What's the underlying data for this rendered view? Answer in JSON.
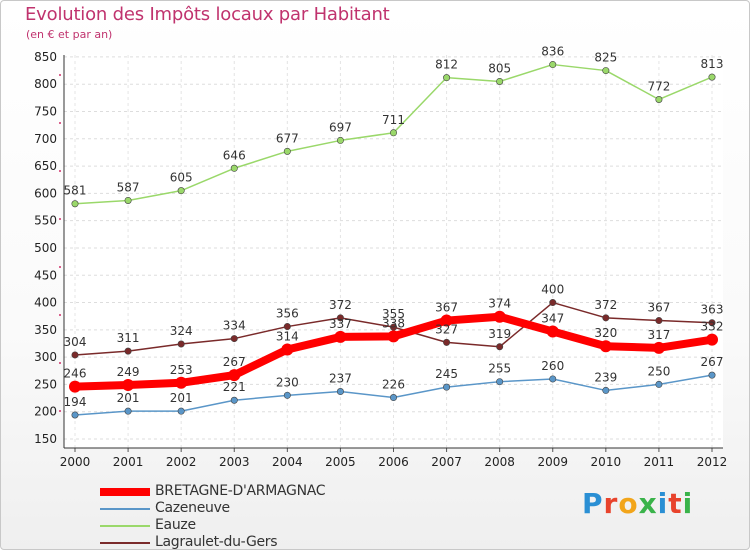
{
  "title": "Evolution des Impôts locaux par Habitant",
  "subtitle": "(en € et par an)",
  "logo": {
    "text": "Proxiti",
    "colors": [
      "#2a8fd4",
      "#e8432c",
      "#f2a51a",
      "#3ab34a",
      "#2a8fd4",
      "#e8432c",
      "#3ab34a"
    ]
  },
  "chart_data": {
    "type": "line",
    "x": [
      2000,
      2001,
      2002,
      2003,
      2004,
      2005,
      2006,
      2007,
      2008,
      2009,
      2010,
      2011,
      2012
    ],
    "y_ticks": [
      150,
      200,
      250,
      300,
      350,
      400,
      450,
      500,
      550,
      600,
      650,
      700,
      750,
      800,
      850
    ],
    "ylim": [
      150,
      870
    ],
    "grid": "horizontal",
    "legend_position": "bottom-left",
    "series": [
      {
        "name": "BRETAGNE-D'ARMAGNAC",
        "color": "#ff0000",
        "thick": true,
        "values": [
          246,
          249,
          253,
          267,
          314,
          337,
          338,
          367,
          374,
          347,
          320,
          317,
          332
        ],
        "labels": [
          "246",
          "249",
          "253",
          "267",
          "314",
          "337",
          "338",
          "367",
          "374",
          "347",
          "320",
          "317",
          "332"
        ]
      },
      {
        "name": "Cazeneuve",
        "color": "#5a96c8",
        "thick": false,
        "values": [
          194,
          201,
          201,
          221,
          230,
          237,
          226,
          245,
          255,
          260,
          239,
          250,
          267
        ],
        "labels": [
          "194",
          "201",
          "201",
          "221",
          "230",
          "237",
          "226",
          "245",
          "255",
          "260",
          "239",
          "250",
          "267"
        ]
      },
      {
        "name": "Eauze",
        "color": "#9ad86a",
        "thick": false,
        "values": [
          581,
          587,
          605,
          646,
          677,
          697,
          711,
          812,
          805,
          836,
          825,
          772,
          813
        ],
        "labels": [
          "581",
          "587",
          "605",
          "646",
          "677",
          "697",
          "711",
          "812",
          "805",
          "836",
          "825",
          "772",
          "813"
        ]
      },
      {
        "name": "Lagraulet-du-Gers",
        "color": "#7a2a2a",
        "thick": false,
        "values": [
          304,
          311,
          324,
          334,
          356,
          372,
          355,
          327,
          319,
          400,
          372,
          367,
          363
        ],
        "labels": [
          "304",
          "311",
          "324",
          "334",
          "356",
          "372",
          "355",
          "327",
          "319",
          "400",
          "372",
          "367",
          "363"
        ]
      }
    ]
  }
}
